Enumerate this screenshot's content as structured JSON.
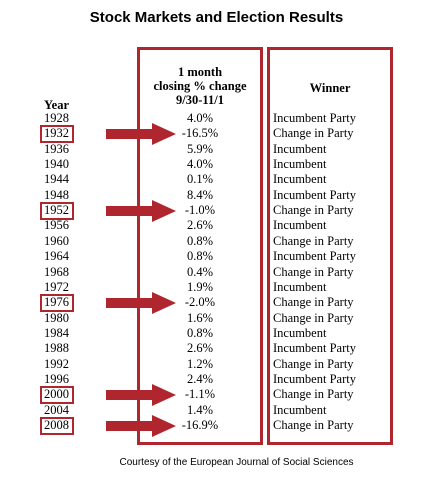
{
  "title": "Stock Markets and Election Results",
  "headers": {
    "year": "Year",
    "change_lines": [
      "1 month",
      "closing % change",
      "9/30-11/1"
    ],
    "winner": "Winner"
  },
  "rows": [
    {
      "year": "1928",
      "change": "4.0%",
      "winner": "Incumbent Party",
      "highlight": false
    },
    {
      "year": "1932",
      "change": "-16.5%",
      "winner": "Change in Party",
      "highlight": true
    },
    {
      "year": "1936",
      "change": "5.9%",
      "winner": "Incumbent",
      "highlight": false
    },
    {
      "year": "1940",
      "change": "4.0%",
      "winner": "Incumbent",
      "highlight": false
    },
    {
      "year": "1944",
      "change": "0.1%",
      "winner": "Incumbent",
      "highlight": false
    },
    {
      "year": "1948",
      "change": "8.4%",
      "winner": "Incumbent Party",
      "highlight": false
    },
    {
      "year": "1952",
      "change": "-1.0%",
      "winner": "Change in Party",
      "highlight": true
    },
    {
      "year": "1956",
      "change": "2.6%",
      "winner": "Incumbent",
      "highlight": false
    },
    {
      "year": "1960",
      "change": "0.8%",
      "winner": "Change in Party",
      "highlight": false
    },
    {
      "year": "1964",
      "change": "0.8%",
      "winner": "Incumbent Party",
      "highlight": false
    },
    {
      "year": "1968",
      "change": "0.4%",
      "winner": "Change in Party",
      "highlight": false
    },
    {
      "year": "1972",
      "change": "1.9%",
      "winner": "Incumbent",
      "highlight": false
    },
    {
      "year": "1976",
      "change": "-2.0%",
      "winner": "Change in Party",
      "highlight": true
    },
    {
      "year": "1980",
      "change": "1.6%",
      "winner": "Change in Party",
      "highlight": false
    },
    {
      "year": "1984",
      "change": "0.8%",
      "winner": "Incumbent",
      "highlight": false
    },
    {
      "year": "1988",
      "change": "2.6%",
      "winner": "Incumbent Party",
      "highlight": false
    },
    {
      "year": "1992",
      "change": "1.2%",
      "winner": "Change in Party",
      "highlight": false
    },
    {
      "year": "1996",
      "change": "2.4%",
      "winner": "Incumbent Party",
      "highlight": false
    },
    {
      "year": "2000",
      "change": "-1.1%",
      "winner": "Change in Party",
      "highlight": true
    },
    {
      "year": "2004",
      "change": "1.4%",
      "winner": "Incumbent",
      "highlight": false
    },
    {
      "year": "2008",
      "change": "-16.9%",
      "winner": "Change in Party",
      "highlight": true
    }
  ],
  "footer": "Courtesy of the European Journal of Social Sciences",
  "colors": {
    "accent": "#b0262f"
  }
}
